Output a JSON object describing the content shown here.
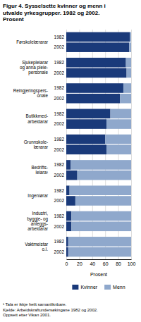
{
  "chart_data": {
    "type": "bar",
    "orientation": "horizontal",
    "stacked": true,
    "title": "Figur 4. Sysselsette kvinner og menn i\nutvalde yrkesgrupper. 1982 og 2002.\nProsent",
    "groups": [
      "Førskolelærarar",
      "Sjukepleiarar\nog anna pleie-\npersonale",
      "Reingjeringspers-\nonale",
      "Butikkmed-\narbeidarar",
      "Grunnskole-\nlærarar",
      "Bedrifts-\nleiara¹",
      "Ingeniørar",
      "Industri,\nbyggje- og\nanleggs-\narbeidarar",
      "Vaktmeistar\no.l."
    ],
    "categories": [
      "1982",
      "2002",
      "1982",
      "2002",
      "1982",
      "2002",
      "1982",
      "2002",
      "1982",
      "2002",
      "1982",
      "2002",
      "1982",
      "2002",
      "1982",
      "2002",
      "1982",
      "2002"
    ],
    "series": [
      {
        "name": "Kvinner",
        "color": "#1a3a7a",
        "values": [
          98,
          97,
          92,
          93,
          88,
          83,
          68,
          62,
          60,
          62,
          7,
          17,
          5,
          14,
          8,
          8,
          3,
          3
        ]
      },
      {
        "name": "Menn",
        "color": "#8fa8cc",
        "values": [
          2,
          3,
          8,
          7,
          12,
          17,
          32,
          38,
          40,
          38,
          93,
          83,
          95,
          86,
          92,
          92,
          97,
          97
        ]
      }
    ],
    "xlabel": "Prosent",
    "xlim": [
      0,
      100
    ],
    "xticks": [
      0,
      20,
      40,
      60,
      80,
      100
    ],
    "grid": true,
    "legend": "bottom",
    "footnote": "¹ Tala er ikkje heilt samanliknbare.\nKjelde: Arbeidskraftundersøkingane 1982 og 2002.\nOppsett etter Vikan 2001."
  }
}
